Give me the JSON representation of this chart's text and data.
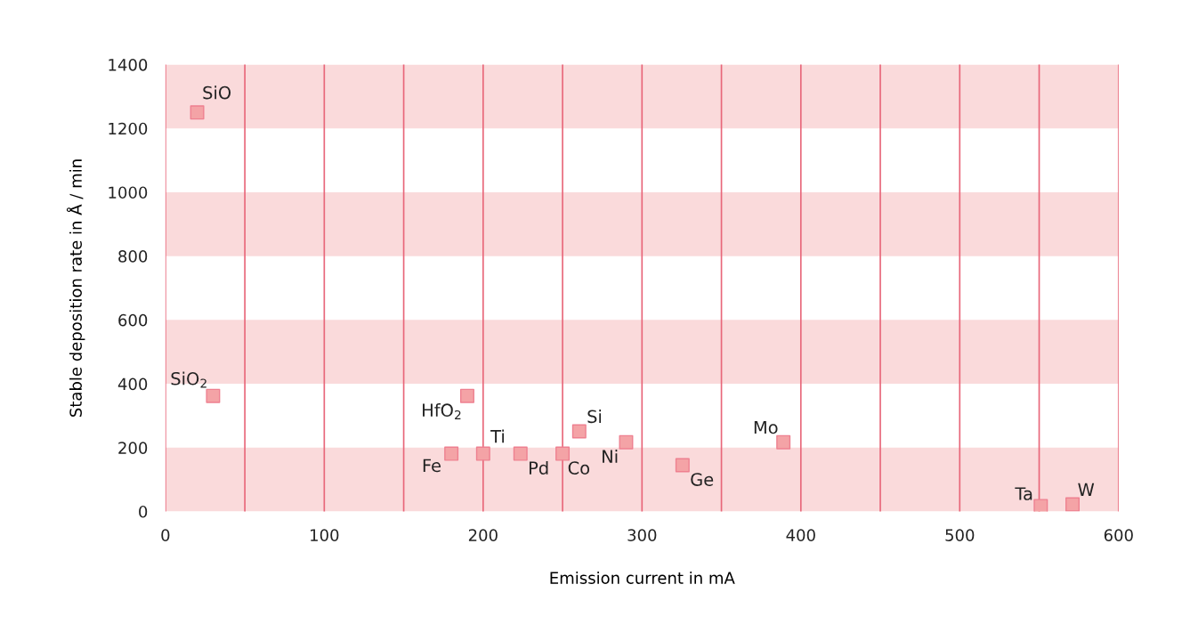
{
  "chart_data": {
    "type": "scatter",
    "xlabel": "Emission current in mA",
    "ylabel": "Stable deposition rate in Å / min",
    "x": [
      20,
      30,
      190,
      180,
      200,
      223.5,
      250,
      260.5,
      290,
      325.5,
      389,
      551,
      571
    ],
    "series": [
      {
        "color": "#f4a3a6",
        "values": [
          1250,
          362,
          362,
          181,
          181,
          181,
          181,
          251,
          217,
          145,
          217,
          17,
          22
        ]
      }
    ],
    "marker": "square",
    "annotations": [
      {
        "text": "SiO",
        "x": 20,
        "y": 1250
      },
      {
        "text": "SiO$_{2}$",
        "x": 30,
        "y": 362
      },
      {
        "text": "HfO$_{2}$",
        "x": 190,
        "y": 362
      },
      {
        "text": "Fe",
        "x": 180,
        "y": 181
      },
      {
        "text": "Ti",
        "x": 200,
        "y": 181
      },
      {
        "text": "Pd",
        "x": 223.5,
        "y": 181
      },
      {
        "text": "Co",
        "x": 250,
        "y": 181
      },
      {
        "text": "Si",
        "x": 260.5,
        "y": 251
      },
      {
        "text": "Ni",
        "x": 290,
        "y": 217
      },
      {
        "text": "Ge",
        "x": 325.5,
        "y": 145
      },
      {
        "text": "Mo",
        "x": 389,
        "y": 217
      },
      {
        "text": "Ta",
        "x": 551,
        "y": 17
      },
      {
        "text": "W",
        "x": 571,
        "y": 22
      }
    ],
    "xlim": [
      0,
      600
    ],
    "ylim": [
      0,
      1400
    ],
    "xticks": [
      0,
      {
        "value": 50,
        "label": null
      },
      100,
      {
        "value": 150,
        "label": null
      },
      200,
      {
        "value": 250,
        "label": null
      },
      300,
      {
        "value": 350,
        "label": null
      },
      400,
      {
        "value": 450,
        "label": null
      },
      500,
      {
        "value": 550,
        "label": null
      },
      600
    ],
    "yticks": [
      0,
      200,
      400,
      600,
      800,
      1000,
      1200,
      1400
    ],
    "grid": "x",
    "bands": [
      {
        "axis": "y",
        "from": 0,
        "to": 200,
        "color": "#fadadb"
      },
      {
        "axis": "y",
        "from": 400,
        "to": 600,
        "color": "#fadadb"
      },
      {
        "axis": "y",
        "from": 800,
        "to": 1000,
        "color": "#fadadb"
      },
      {
        "axis": "y",
        "from": 1200,
        "to": 1400,
        "color": "#fadadb"
      }
    ]
  }
}
